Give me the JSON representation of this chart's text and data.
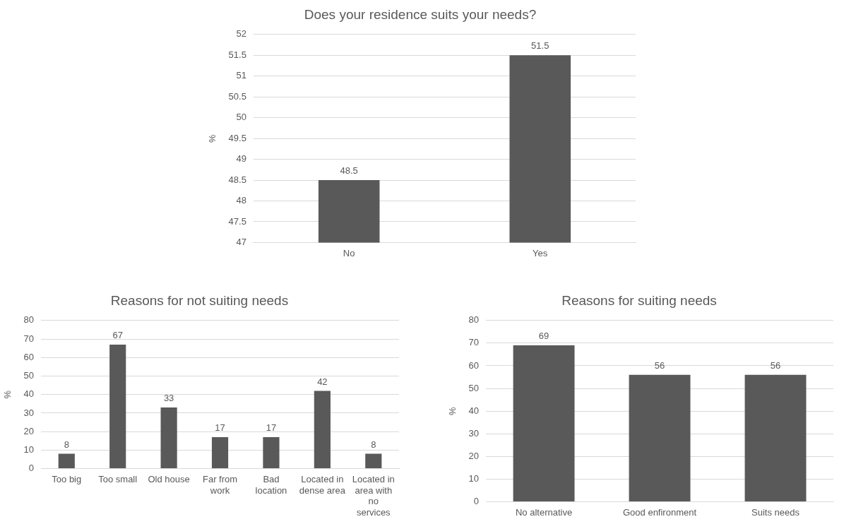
{
  "chart_data": [
    {
      "type": "bar",
      "title": "Does your residence suits your needs?",
      "ylabel": "%",
      "categories": [
        "No",
        "Yes"
      ],
      "values": [
        48.5,
        51.5
      ],
      "color": "#595959",
      "ylim": [
        47,
        52
      ],
      "yticks": [
        47,
        47.5,
        48,
        48.5,
        49,
        49.5,
        50,
        50.5,
        51,
        51.5,
        52
      ],
      "grid": "y",
      "data_labels": true,
      "legend": false
    },
    {
      "type": "bar",
      "title": "Reasons for not suiting needs",
      "ylabel": "%",
      "categories": [
        "Too big",
        "Too small",
        "Old house",
        "Far from work",
        "Bad location",
        "Located in dense area",
        "Located in area with no services"
      ],
      "values": [
        8,
        67,
        33,
        17,
        17,
        42,
        8
      ],
      "color": "#595959",
      "ylim": [
        0,
        80
      ],
      "yticks": [
        0,
        10,
        20,
        30,
        40,
        50,
        60,
        70,
        80
      ],
      "grid": "y",
      "data_labels": true,
      "legend": false
    },
    {
      "type": "bar",
      "title": "Reasons for suiting needs",
      "ylabel": "%",
      "categories": [
        "No alternative",
        "Good enfironment",
        "Suits needs"
      ],
      "values": [
        69,
        56,
        56
      ],
      "color": "#595959",
      "ylim": [
        0,
        80
      ],
      "yticks": [
        0,
        10,
        20,
        30,
        40,
        50,
        60,
        70,
        80
      ],
      "grid": "y",
      "data_labels": true,
      "legend": false
    }
  ]
}
